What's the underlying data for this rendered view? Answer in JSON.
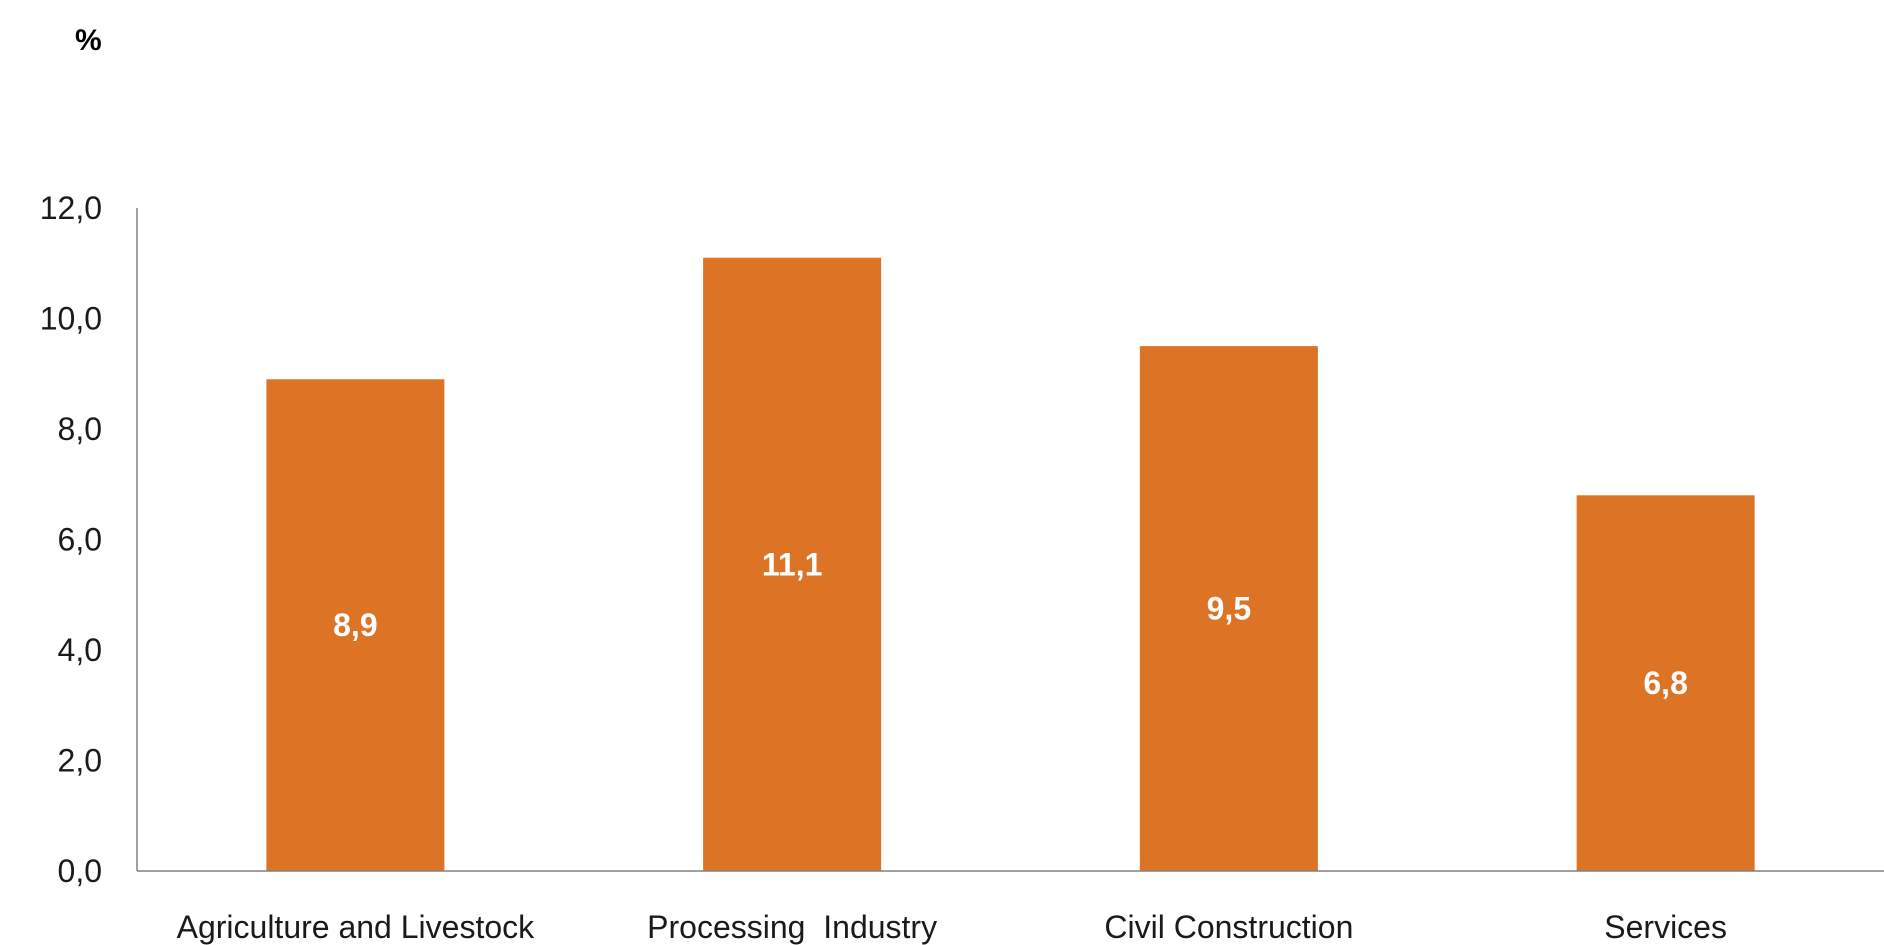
{
  "chart_data": {
    "type": "bar",
    "unit_label": "%",
    "categories": [
      "Agriculture and Livestock",
      "Processing  Industry",
      "Civil Construction",
      "Services"
    ],
    "values": [
      8.9,
      11.1,
      9.5,
      6.8
    ],
    "data_labels": [
      "8,9",
      "11,1",
      "9,5",
      "6,8"
    ],
    "yticks": [
      "0,0",
      "2,0",
      "4,0",
      "6,0",
      "8,0",
      "10,0",
      "12,0"
    ],
    "ylim": [
      0,
      12
    ],
    "bar_color": "#DC7325",
    "axis_color": "#808080",
    "grid": false,
    "legend": "none"
  }
}
